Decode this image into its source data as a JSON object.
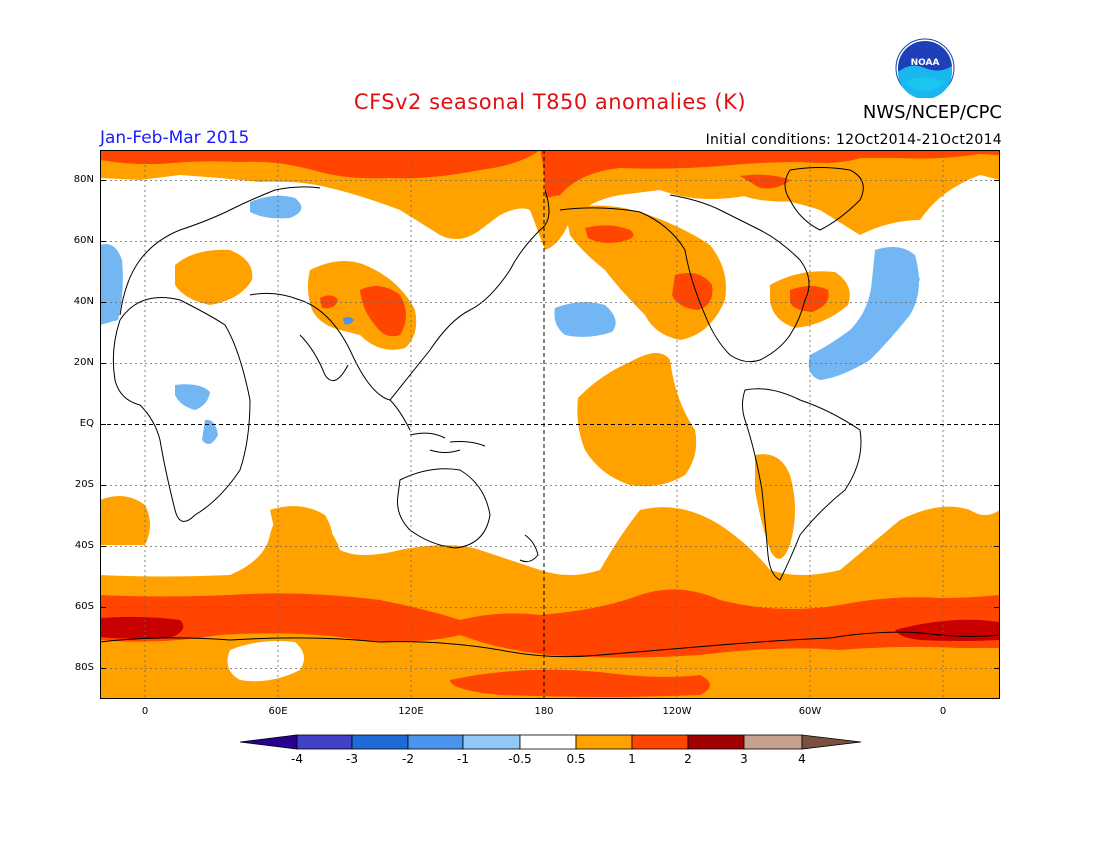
{
  "header": {
    "title": "CFSv2 seasonal T850 anomalies (K)",
    "season": "Jan-Feb-Mar 2015",
    "initial_conditions": "Initial conditions: 12Oct2014-21Oct2014",
    "agency": "NWS/NCEP/CPC",
    "logo_text": "NOAA"
  },
  "map": {
    "lat_labels": [
      "80N",
      "60N",
      "40N",
      "20N",
      "EQ",
      "20S",
      "40S",
      "60S",
      "80S"
    ],
    "lon_labels": [
      "0",
      "60E",
      "120E",
      "180",
      "120W",
      "60W",
      "0"
    ],
    "colors": {
      "no_data": "#ffffff",
      "neg_4": "#330099",
      "neg_3": "#3333cc",
      "neg_2": "#1f6ad8",
      "neg_1": "#4a94ee",
      "neg_05": "#73b6f4",
      "pos_05": "#ffa200",
      "pos_1": "#ff4500",
      "pos_2": "#c80000",
      "pos_3": "#8b1a1a",
      "pos_4": "#6b4535"
    }
  },
  "colorbar": {
    "labels": [
      "-4",
      "-3",
      "-2",
      "-1",
      "-0.5",
      "0.5",
      "1",
      "2",
      "3",
      "4"
    ],
    "colors": [
      "#2a0090",
      "#4040c8",
      "#1f6ad8",
      "#4a94ee",
      "#90c8f8",
      "#ffffff",
      "#ffa200",
      "#ff4500",
      "#a00000",
      "#c8a090",
      "#7a5040"
    ]
  }
}
